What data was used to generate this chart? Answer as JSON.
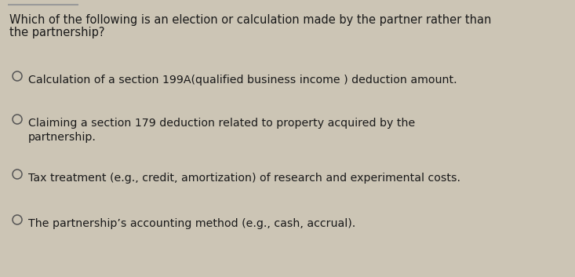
{
  "background_color": "#ccc5b5",
  "title_line1": "Which of the following is an election or calculation made by the partner rather than",
  "title_line2": "the partnership?",
  "options": [
    "Calculation of a section 199A(qualified business income ) deduction amount.",
    "Claiming a section 179 deduction related to property acquired by the\npartnership.",
    "Tax treatment (e.g., credit, amortization) of research and experimental costs.",
    "The partnership’s accounting method (e.g., cash, accrual)."
  ],
  "title_fontsize": 10.5,
  "option_fontsize": 10.2,
  "text_color": "#1a1a1a",
  "circle_color": "#555555",
  "top_border_color": "#999999",
  "fig_width": 7.33,
  "fig_height": 3.53,
  "dpi": 100
}
